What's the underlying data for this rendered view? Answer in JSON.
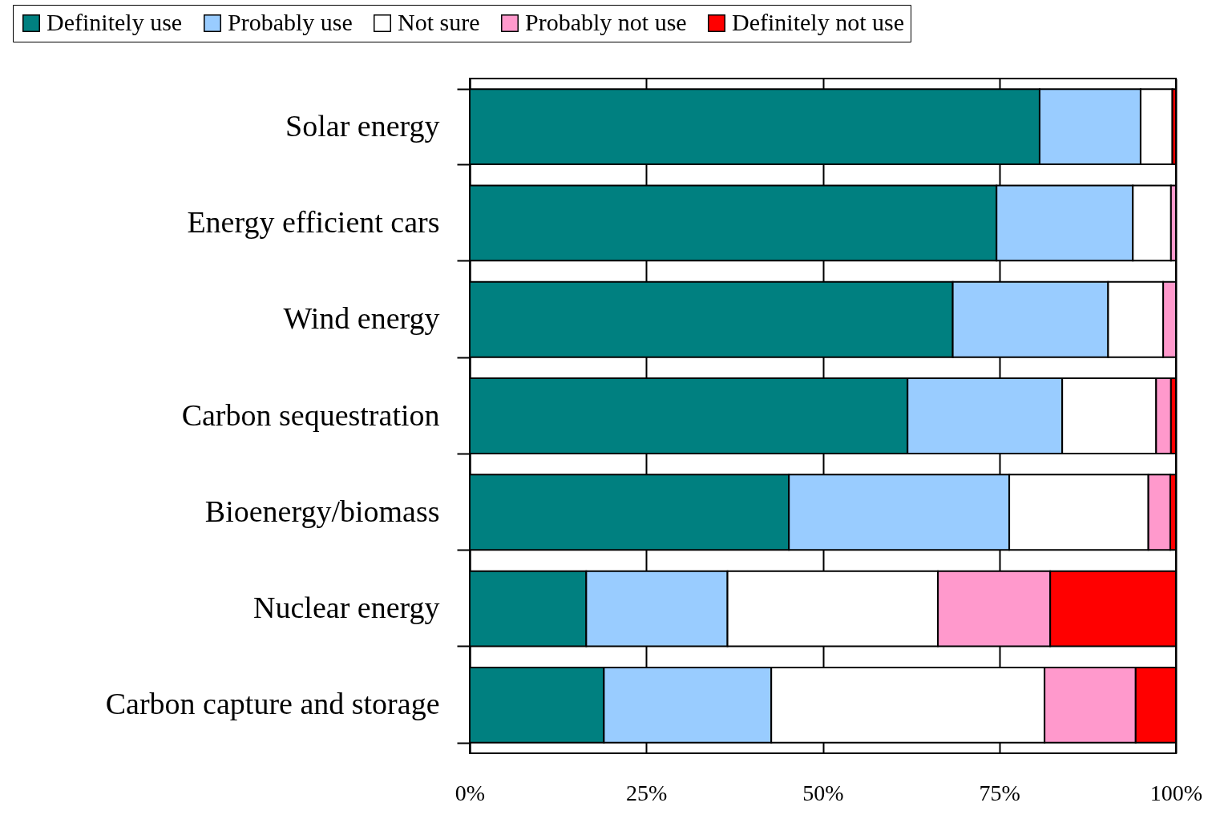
{
  "chart_data": {
    "type": "bar",
    "orientation": "horizontal",
    "stacked": true,
    "categories": [
      "Solar energy",
      "Energy efficient cars",
      "Wind energy",
      "Carbon sequestration",
      "Bioenergy/biomass",
      "Nuclear energy",
      "Carbon capture and storage"
    ],
    "series": [
      {
        "name": "Definitely use",
        "color": "#008080",
        "values": [
          80.7,
          74.6,
          68.4,
          62.0,
          45.2,
          16.5,
          19.0
        ]
      },
      {
        "name": "Probably use",
        "color": "#99ccff",
        "values": [
          14.3,
          19.3,
          22.0,
          21.9,
          31.2,
          20.0,
          23.7
        ]
      },
      {
        "name": "Not sure",
        "color": "#ffffff",
        "values": [
          4.5,
          5.4,
          7.8,
          13.3,
          19.7,
          29.8,
          38.7
        ]
      },
      {
        "name": "Probably not use",
        "color": "#ff99cc",
        "values": [
          null,
          0.7,
          1.8,
          2.1,
          3.1,
          15.9,
          12.9
        ]
      },
      {
        "name": "Definitely not use",
        "color": "#ff0000",
        "values": [
          0.5,
          0,
          0,
          0.7,
          0.8,
          17.8,
          5.7
        ]
      }
    ],
    "xlim": [
      0,
      100
    ],
    "xticks": [
      {
        "value": 0,
        "label": "0%"
      },
      {
        "value": 25,
        "label": "25%"
      },
      {
        "value": 50,
        "label": "50%"
      },
      {
        "value": 75,
        "label": "75%"
      },
      {
        "value": 100,
        "label": "100%"
      }
    ],
    "grid": "x",
    "legend": "top"
  }
}
